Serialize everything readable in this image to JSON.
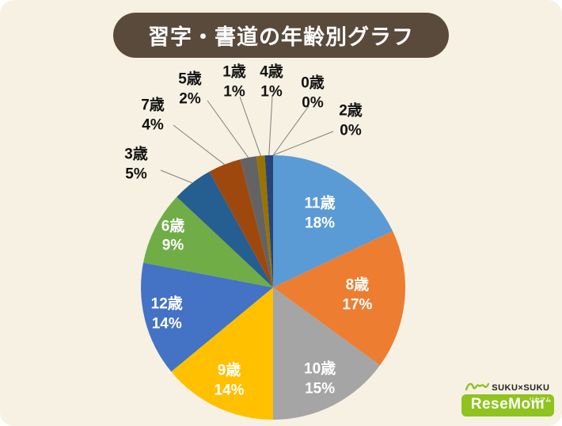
{
  "theme": {
    "background": "#f6f1e2",
    "title_bg": "#5a4a3c",
    "title_color": "#ffffff",
    "leader_line_color": "#7f7f7f",
    "logo_green": "#8fc31f"
  },
  "chart_data": {
    "type": "pie",
    "title": "習字・書道の年齢別グラフ",
    "direction": "clockwise",
    "start_angle_deg": 0,
    "legend": "none",
    "total_percent": 100,
    "slices": [
      {
        "label": "11歳",
        "value": 18,
        "color": "#5b9bd5",
        "label_pos": "inside"
      },
      {
        "label": "8歳",
        "value": 17,
        "color": "#ed7d31",
        "label_pos": "inside"
      },
      {
        "label": "10歳",
        "value": 15,
        "color": "#a5a5a5",
        "label_pos": "inside"
      },
      {
        "label": "9歳",
        "value": 14,
        "color": "#ffc000",
        "label_pos": "inside"
      },
      {
        "label": "12歳",
        "value": 14,
        "color": "#4472c4",
        "label_pos": "inside"
      },
      {
        "label": "6歳",
        "value": 9,
        "color": "#70ad47",
        "label_pos": "inside"
      },
      {
        "label": "3歳",
        "value": 5,
        "color": "#255e91",
        "label_pos": "outside"
      },
      {
        "label": "7歳",
        "value": 4,
        "color": "#9e480e",
        "label_pos": "outside"
      },
      {
        "label": "5歳",
        "value": 2,
        "color": "#636363",
        "label_pos": "outside"
      },
      {
        "label": "1歳",
        "value": 1,
        "color": "#997300",
        "label_pos": "outside"
      },
      {
        "label": "4歳",
        "value": 1,
        "color": "#264478",
        "label_pos": "outside"
      },
      {
        "label": "0歳",
        "value": 0,
        "color": "#43682b",
        "label_pos": "outside"
      },
      {
        "label": "2歳",
        "value": 0,
        "color": "#698ed0",
        "label_pos": "outside"
      }
    ]
  },
  "logo": {
    "top_text": "SUKU×SUKU",
    "brand": "ReseMom",
    "brand_sub": "リセマム"
  }
}
